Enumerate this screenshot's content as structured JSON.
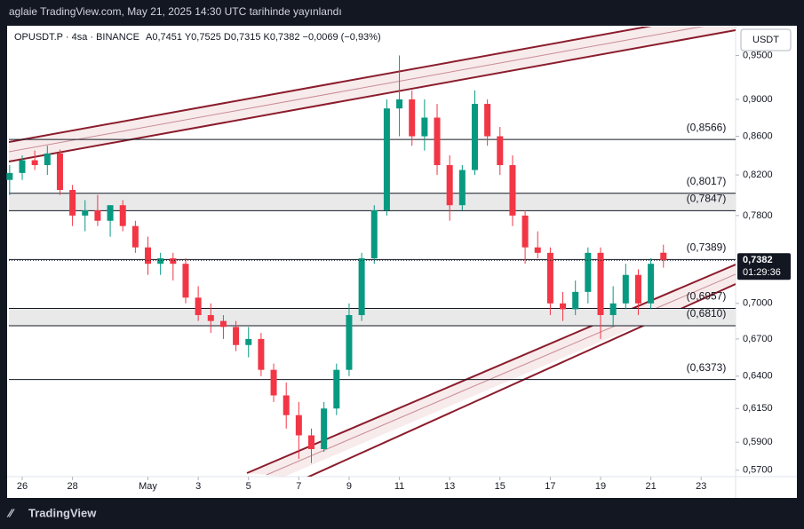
{
  "header": "aglaie TradingView.com, May 21, 2025 14:30 UTC tarihinde yayınlandı",
  "footer": "TradingView",
  "chart_data": {
    "type": "candlestick",
    "title": "OPUSDT.P · 4sa · BINANCE",
    "ohlc_text": "A0,7451  Y0,7525  D0,7315  K0,7382  −0,0069 (−0,93%)",
    "currency": "USDT",
    "log_scale": true,
    "up_color": "#089981",
    "down_color": "#f23645",
    "x": [
      -0.5,
      0,
      0.5,
      1,
      1.5,
      2,
      2.5,
      3,
      3.5,
      4,
      4.5,
      5,
      5.5,
      6,
      6.5,
      7,
      7.5,
      8,
      8.5,
      9,
      9.5,
      10,
      10.5,
      11,
      11.5,
      12,
      12.5,
      13,
      13.5,
      14,
      14.5,
      15,
      15.5,
      16,
      16.5,
      17,
      17.5,
      18,
      18.5,
      19,
      19.5,
      20,
      20.5,
      21,
      21.5,
      22,
      22.5,
      23,
      23.5,
      24,
      24.5,
      25,
      25.5
    ],
    "open": [
      0.815,
      0.822,
      0.835,
      0.83,
      0.842,
      0.805,
      0.78,
      0.785,
      0.775,
      0.79,
      0.77,
      0.75,
      0.735,
      0.74,
      0.735,
      0.705,
      0.69,
      0.685,
      0.68,
      0.665,
      0.67,
      0.645,
      0.625,
      0.61,
      0.595,
      0.585,
      0.615,
      0.645,
      0.69,
      0.74,
      0.785,
      0.89,
      0.9,
      0.86,
      0.88,
      0.83,
      0.79,
      0.825,
      0.895,
      0.86,
      0.83,
      0.78,
      0.75,
      0.745,
      0.7,
      0.695,
      0.71,
      0.745,
      0.69,
      0.7,
      0.725,
      0.7,
      0.7451
    ],
    "high": [
      0.83,
      0.84,
      0.845,
      0.85,
      0.846,
      0.81,
      0.795,
      0.8,
      0.79,
      0.795,
      0.775,
      0.76,
      0.745,
      0.745,
      0.74,
      0.715,
      0.7,
      0.69,
      0.685,
      0.68,
      0.675,
      0.65,
      0.635,
      0.62,
      0.6,
      0.62,
      0.65,
      0.7,
      0.745,
      0.79,
      0.9,
      0.95,
      0.91,
      0.9,
      0.895,
      0.84,
      0.83,
      0.91,
      0.9,
      0.87,
      0.84,
      0.785,
      0.765,
      0.75,
      0.71,
      0.72,
      0.75,
      0.75,
      0.715,
      0.735,
      0.73,
      0.74,
      0.7525
    ],
    "low": [
      0.8,
      0.815,
      0.825,
      0.82,
      0.8,
      0.77,
      0.765,
      0.77,
      0.76,
      0.765,
      0.745,
      0.725,
      0.725,
      0.72,
      0.7,
      0.685,
      0.675,
      0.67,
      0.66,
      0.655,
      0.64,
      0.62,
      0.6,
      0.578,
      0.575,
      0.583,
      0.61,
      0.64,
      0.685,
      0.735,
      0.78,
      0.86,
      0.85,
      0.845,
      0.82,
      0.775,
      0.785,
      0.82,
      0.85,
      0.82,
      0.77,
      0.735,
      0.74,
      0.69,
      0.685,
      0.69,
      0.7,
      0.67,
      0.68,
      0.695,
      0.69,
      0.695,
      0.7315
    ],
    "close": [
      0.822,
      0.835,
      0.83,
      0.842,
      0.805,
      0.78,
      0.785,
      0.775,
      0.79,
      0.77,
      0.75,
      0.735,
      0.74,
      0.735,
      0.705,
      0.69,
      0.685,
      0.68,
      0.665,
      0.67,
      0.645,
      0.625,
      0.61,
      0.595,
      0.585,
      0.615,
      0.645,
      0.69,
      0.74,
      0.785,
      0.89,
      0.9,
      0.86,
      0.88,
      0.83,
      0.79,
      0.825,
      0.895,
      0.86,
      0.83,
      0.78,
      0.75,
      0.745,
      0.7,
      0.695,
      0.71,
      0.745,
      0.69,
      0.7,
      0.725,
      0.7,
      0.735,
      0.7382
    ],
    "xlim": [
      -0.53,
      28.37
    ],
    "xticks": [
      {
        "value": 0,
        "label": "26"
      },
      {
        "value": 2,
        "label": "28"
      },
      {
        "value": 5,
        "label": "May"
      },
      {
        "value": 7,
        "label": "3"
      },
      {
        "value": 9,
        "label": "5"
      },
      {
        "value": 11,
        "label": "7"
      },
      {
        "value": 13,
        "label": "9"
      },
      {
        "value": 15,
        "label": "11"
      },
      {
        "value": 17,
        "label": "13"
      },
      {
        "value": 19,
        "label": "15"
      },
      {
        "value": 21,
        "label": "17"
      },
      {
        "value": 23,
        "label": "19"
      },
      {
        "value": 25,
        "label": "21"
      },
      {
        "value": 27,
        "label": "23"
      }
    ],
    "ylim": [
      0.5655,
      0.979
    ],
    "yticks": [
      {
        "value": 0.95,
        "label": "0,9500"
      },
      {
        "value": 0.9,
        "label": "0,9000"
      },
      {
        "value": 0.86,
        "label": "0,8600"
      },
      {
        "value": 0.82,
        "label": "0,8200"
      },
      {
        "value": 0.78,
        "label": "0,7800"
      },
      {
        "value": 0.7,
        "label": "0,7000"
      },
      {
        "value": 0.67,
        "label": "0,6700"
      },
      {
        "value": 0.64,
        "label": "0,6400"
      },
      {
        "value": 0.615,
        "label": "0,6150"
      },
      {
        "value": 0.59,
        "label": "0,5900"
      },
      {
        "value": 0.57,
        "label": "0,5700"
      }
    ],
    "levels": [
      {
        "value": 0.8566,
        "label": "(0,8566)"
      },
      {
        "value": 0.8017,
        "label": "(0,8017)"
      },
      {
        "value": 0.7847,
        "label": "(0,7847)"
      },
      {
        "value": 0.7389,
        "label": "(0,7389)"
      },
      {
        "value": 0.6957,
        "label": "(0,6957)"
      },
      {
        "value": 0.681,
        "label": "(0,6810)"
      },
      {
        "value": 0.6373,
        "label": "(0,6373)"
      }
    ],
    "last_price": {
      "value": 0.7382,
      "label": "0,7382"
    },
    "countdown": "01:29:36"
  }
}
